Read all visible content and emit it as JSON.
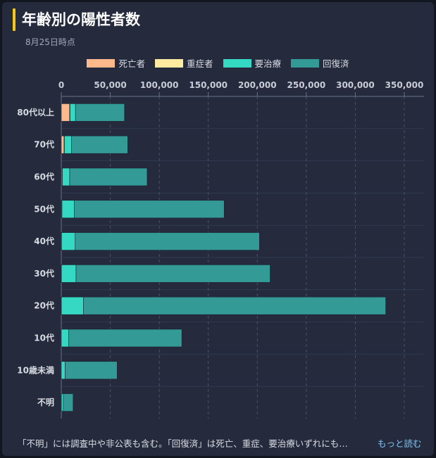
{
  "header": {
    "title": "年齢別の陽性者数",
    "date": "8月25日時点"
  },
  "footer": {
    "note": "「不明」には調査中や非公表も含む。「回復済」は死亡、重症、要治療いずれにも…",
    "more_label": "もっと読む"
  },
  "colors": {
    "background": "#12161f",
    "card": "#252b3d",
    "accent": "#f5c518",
    "death": "#ffb98a",
    "severe": "#ffeaa0",
    "treatment": "#35d9c3",
    "recovered": "#349a96"
  },
  "chart_data": {
    "type": "bar",
    "orientation": "horizontal",
    "stacked": true,
    "categories": [
      "80代以上",
      "70代",
      "60代",
      "50代",
      "40代",
      "30代",
      "20代",
      "10代",
      "10歳未満",
      "不明"
    ],
    "series": [
      {
        "name": "死亡者",
        "color": "#ffb98a",
        "values": [
          8500,
          2800,
          800,
          500,
          100,
          50,
          20,
          0,
          0,
          50
        ]
      },
      {
        "name": "重症者",
        "color": "#ffeaa0",
        "values": [
          500,
          500,
          300,
          200,
          100,
          50,
          30,
          0,
          0,
          0
        ]
      },
      {
        "name": "要治療",
        "color": "#35d9c3",
        "values": [
          5500,
          7000,
          7500,
          12500,
          14000,
          15000,
          22500,
          7500,
          4000,
          2000
        ]
      },
      {
        "name": "回復済",
        "color": "#349a96",
        "values": [
          50000,
          57500,
          79000,
          153000,
          188000,
          198000,
          308500,
          115500,
          53000,
          10000
        ]
      }
    ],
    "xlim": [
      0,
      350000
    ],
    "xticks": [
      "0",
      "50,000",
      "100,000",
      "150,000",
      "200,000",
      "250,000",
      "300,000",
      "350,000"
    ],
    "grid": true,
    "legend": "top-center"
  }
}
